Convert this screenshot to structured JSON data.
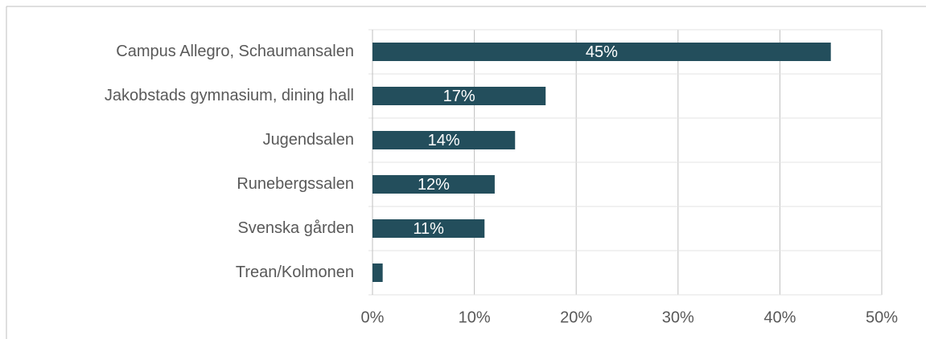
{
  "chart_data": {
    "type": "bar",
    "orientation": "horizontal",
    "categories": [
      "Campus Allegro, Schaumansalen",
      "Jakobstads gymnasium, dining hall",
      "Jugendsalen",
      "Runebergssalen",
      "Svenska gården",
      "Trean/Kolmonen"
    ],
    "values": [
      45,
      17,
      14,
      12,
      11,
      1
    ],
    "value_labels": [
      "45%",
      "17%",
      "14%",
      "12%",
      "11%",
      null
    ],
    "color": "#234e5c",
    "xlim": [
      0,
      50
    ],
    "xticks": [
      {
        "value": 0,
        "label": "0%"
      },
      {
        "value": 10,
        "label": "10%"
      },
      {
        "value": 20,
        "label": "20%"
      },
      {
        "value": 30,
        "label": "30%"
      },
      {
        "value": 40,
        "label": "40%"
      },
      {
        "value": 50,
        "label": "50%"
      }
    ],
    "grid": true
  }
}
